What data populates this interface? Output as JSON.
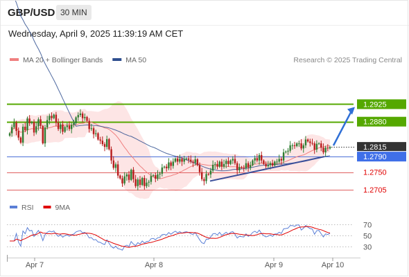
{
  "header": {
    "symbol": "GBP/USD",
    "timeframe": "30 MIN",
    "datetime": "Wednesday, April 9, 2025 11:39:19 AM CET"
  },
  "legend": {
    "items": [
      {
        "label": "MA 20 + Bollinger Bands",
        "color": "#f08080"
      },
      {
        "label": "MA 50",
        "color": "#2f4f8f"
      }
    ],
    "credit": "Research © 2025 Trading Central"
  },
  "rsi_legend": {
    "items": [
      {
        "label": "RSI",
        "color": "#5b7fd6"
      },
      {
        "label": "9MA",
        "color": "#e00000"
      }
    ]
  },
  "colors": {
    "up_candle": "#2e7d32",
    "down_candle": "#b71c1c",
    "resistance": "#55a800",
    "pivot": "#4a6fd8",
    "support": "#e06060",
    "current": "#333333",
    "trend": "#3a4f9a",
    "bands": "#fde0e0"
  },
  "chart_data": [
    {
      "type": "candlestick",
      "title": "GBP/USD",
      "ylim": [
        1.2685,
        1.3015
      ],
      "x_ticks": [
        "Apr 7",
        "Apr 8",
        "Apr 9",
        "Apr 10"
      ],
      "closes": [
        1.285,
        1.2866,
        1.2877,
        1.2856,
        1.2839,
        1.2826,
        1.2867,
        1.2858,
        1.2888,
        1.2876,
        1.2879,
        1.2852,
        1.2868,
        1.2886,
        1.2869,
        1.2824,
        1.2865,
        1.2884,
        1.2895,
        1.2889,
        1.2898,
        1.2877,
        1.2861,
        1.2873,
        1.2854,
        1.2866,
        1.287,
        1.2861,
        1.2872,
        1.2876,
        1.2891,
        1.2897,
        1.2901,
        1.2889,
        1.2892,
        1.2882,
        1.2861,
        1.2863,
        1.2848,
        1.285,
        1.2834,
        1.2831,
        1.2822,
        1.2815,
        1.2835,
        1.2809,
        1.278,
        1.2761,
        1.277,
        1.2741,
        1.2734,
        1.2721,
        1.2739,
        1.2744,
        1.273,
        1.2756,
        1.2732,
        1.2714,
        1.2731,
        1.2717,
        1.2735,
        1.2714,
        1.2723,
        1.2725,
        1.274,
        1.2742,
        1.2733,
        1.2744,
        1.2746,
        1.2762,
        1.2764,
        1.276,
        1.2775,
        1.2766,
        1.2777,
        1.2785,
        1.2777,
        1.2784,
        1.2777,
        1.2783,
        1.2785,
        1.2782,
        1.2777,
        1.2774,
        1.2783,
        1.2768,
        1.275,
        1.2732,
        1.2727,
        1.2745,
        1.2744,
        1.2754,
        1.2769,
        1.2771,
        1.2764,
        1.2777,
        1.2764,
        1.2771,
        1.2779,
        1.2771,
        1.278,
        1.2784,
        1.2773,
        1.2755,
        1.2763,
        1.2761,
        1.276,
        1.2773,
        1.2762,
        1.2768,
        1.278,
        1.2786,
        1.278,
        1.2794,
        1.278,
        1.2771,
        1.2765,
        1.2768,
        1.2773,
        1.2767,
        1.2777,
        1.2777,
        1.2784,
        1.278,
        1.2801,
        1.2803,
        1.2805,
        1.2819,
        1.2819,
        1.2817,
        1.2824,
        1.2824,
        1.2811,
        1.2819,
        1.2834,
        1.2829,
        1.2825,
        1.2824,
        1.2808,
        1.2823,
        1.2824,
        1.2813,
        1.2801,
        1.2813,
        1.2811,
        1.2815
      ],
      "current_price": 1.2815,
      "levels": [
        {
          "label": "1.2925",
          "value": 1.2925,
          "kind": "resistance"
        },
        {
          "label": "1.2880",
          "value": 1.288,
          "kind": "resistance"
        },
        {
          "label": "1.2790",
          "value": 1.279,
          "kind": "pivot"
        },
        {
          "label": "1.2750",
          "value": 1.275,
          "kind": "support"
        },
        {
          "label": "1.2705",
          "value": 1.2705,
          "kind": "support"
        }
      ],
      "series": [
        {
          "name": "MA 20 + Bollinger Bands"
        },
        {
          "name": "MA 50"
        }
      ],
      "trendline_points": [
        [
          1.2727,
          1.279
        ]
      ],
      "arrow_target": 1.2925
    },
    {
      "type": "line",
      "title": "RSI",
      "ylim": [
        15,
        85
      ],
      "y_ticks": [
        70,
        50,
        30
      ],
      "series": [
        {
          "name": "RSI"
        },
        {
          "name": "9MA"
        }
      ]
    }
  ]
}
